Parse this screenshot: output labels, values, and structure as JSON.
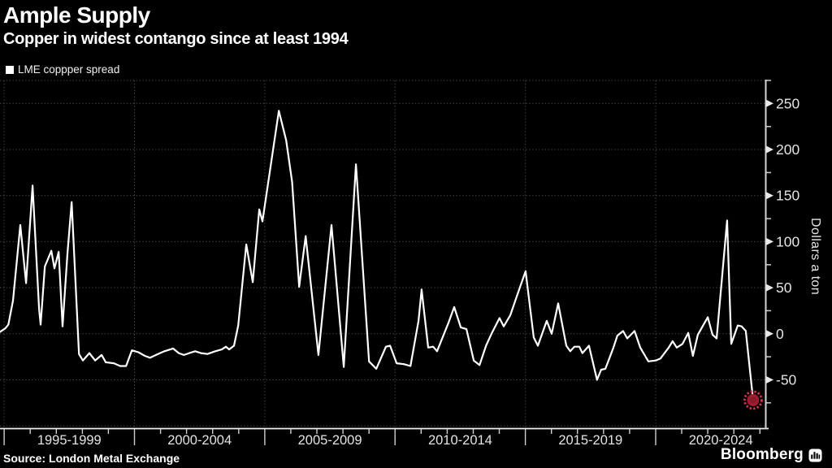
{
  "header": {
    "title": "Ample Supply",
    "subtitle": "Copper in widest contango since at least 1994"
  },
  "legend": {
    "label": "LME coppper spread",
    "swatch_color": "#ffffff"
  },
  "footer": {
    "source": "Source: London Metal Exchange",
    "brand": "Bloomberg"
  },
  "chart_data": {
    "type": "line",
    "title": "Ample Supply",
    "subtitle": "Copper in widest contango since at least 1994",
    "xlabel": "",
    "ylabel": "Dollars a ton",
    "background_color": "#000000",
    "line_color": "#ffffff",
    "grid_color": "#4d4d4d",
    "axis_color": "#d6d6d6",
    "tick_label_color": "#e4e4e4",
    "grid_style": "dotted",
    "legend_position": "top-left",
    "x_categories": [
      "1995-1999",
      "2000-2004",
      "2005-2009",
      "2010-2014",
      "2015-2019",
      "2020-2024"
    ],
    "x_boundaries": [
      1995,
      2000,
      2005,
      2010,
      2015,
      2020
    ],
    "x_minor_step": 1,
    "xlim": [
      1994.84,
      2024.21
    ],
    "ylim": [
      -102.5,
      275
    ],
    "y_major_ticks": [
      250,
      200,
      150,
      100,
      50,
      0,
      -50
    ],
    "y_minor_ticks": [
      275,
      225,
      175,
      125,
      75,
      25,
      -25,
      -75
    ],
    "y_gridlines": [
      275,
      250,
      200,
      150,
      100,
      50,
      0,
      -50,
      -100
    ],
    "endpoint_marker": {
      "year": 2023.74,
      "value": -72,
      "fill": "#9c1e31",
      "ring_color": "#d83450"
    },
    "series": [
      {
        "name": "LME coppper spread",
        "color": "#ffffff",
        "points": [
          [
            1994.84,
            2
          ],
          [
            1995.05,
            6
          ],
          [
            1995.16,
            10
          ],
          [
            1995.34,
            36
          ],
          [
            1995.62,
            118
          ],
          [
            1995.84,
            55
          ],
          [
            1996.09,
            161
          ],
          [
            1996.34,
            27
          ],
          [
            1996.4,
            10
          ],
          [
            1996.56,
            73
          ],
          [
            1996.81,
            90
          ],
          [
            1996.93,
            71
          ],
          [
            1997.09,
            89
          ],
          [
            1997.24,
            8
          ],
          [
            1997.43,
            88
          ],
          [
            1997.59,
            143
          ],
          [
            1997.87,
            -22
          ],
          [
            1998.02,
            -29
          ],
          [
            1998.27,
            -21
          ],
          [
            1998.49,
            -29
          ],
          [
            1998.74,
            -23
          ],
          [
            1998.9,
            -31
          ],
          [
            1999.21,
            -32
          ],
          [
            1999.45,
            -35
          ],
          [
            1999.68,
            -35
          ],
          [
            1999.9,
            -18
          ],
          [
            2000.15,
            -20
          ],
          [
            2000.4,
            -24
          ],
          [
            2000.6,
            -26
          ],
          [
            2000.9,
            -22
          ],
          [
            2001.15,
            -19
          ],
          [
            2001.48,
            -16
          ],
          [
            2001.7,
            -21
          ],
          [
            2001.9,
            -23
          ],
          [
            2002.1,
            -21
          ],
          [
            2002.33,
            -19
          ],
          [
            2002.55,
            -21
          ],
          [
            2002.8,
            -22
          ],
          [
            2003.1,
            -19
          ],
          [
            2003.35,
            -17
          ],
          [
            2003.51,
            -14
          ],
          [
            2003.63,
            -17
          ],
          [
            2003.82,
            -13
          ],
          [
            2003.98,
            9
          ],
          [
            2004.29,
            97
          ],
          [
            2004.54,
            56
          ],
          [
            2004.79,
            135
          ],
          [
            2004.91,
            122
          ],
          [
            2005.54,
            242
          ],
          [
            2005.82,
            210
          ],
          [
            2006.05,
            165
          ],
          [
            2006.32,
            51
          ],
          [
            2006.57,
            106
          ],
          [
            2007.06,
            -23
          ],
          [
            2007.56,
            118
          ],
          [
            2008.03,
            -36
          ],
          [
            2008.5,
            184
          ],
          [
            2009.0,
            -30
          ],
          [
            2009.28,
            -38
          ],
          [
            2009.65,
            -14
          ],
          [
            2009.81,
            -13
          ],
          [
            2010.06,
            -32
          ],
          [
            2010.34,
            -33
          ],
          [
            2010.59,
            -35
          ],
          [
            2010.9,
            14
          ],
          [
            2011.02,
            48
          ],
          [
            2011.27,
            -15
          ],
          [
            2011.46,
            -14
          ],
          [
            2011.61,
            -19
          ],
          [
            2012.05,
            12
          ],
          [
            2012.27,
            29
          ],
          [
            2012.52,
            7
          ],
          [
            2012.74,
            5
          ],
          [
            2013.02,
            -29
          ],
          [
            2013.24,
            -34
          ],
          [
            2013.49,
            -13
          ],
          [
            2013.7,
            0
          ],
          [
            2014.01,
            17
          ],
          [
            2014.17,
            8
          ],
          [
            2014.42,
            20
          ],
          [
            2014.7,
            43
          ],
          [
            2015.01,
            68
          ],
          [
            2015.32,
            -4
          ],
          [
            2015.48,
            -13
          ],
          [
            2015.82,
            14
          ],
          [
            2016.01,
            0
          ],
          [
            2016.26,
            33
          ],
          [
            2016.57,
            -13
          ],
          [
            2016.72,
            -19
          ],
          [
            2016.88,
            -14
          ],
          [
            2017.07,
            -14
          ],
          [
            2017.19,
            -21
          ],
          [
            2017.44,
            -13
          ],
          [
            2017.75,
            -50
          ],
          [
            2017.91,
            -39
          ],
          [
            2018.07,
            -38
          ],
          [
            2018.38,
            -15
          ],
          [
            2018.53,
            -2
          ],
          [
            2018.75,
            3
          ],
          [
            2018.91,
            -5
          ],
          [
            2019.19,
            3
          ],
          [
            2019.41,
            -15
          ],
          [
            2019.72,
            -30
          ],
          [
            2020.0,
            -29
          ],
          [
            2020.18,
            -27
          ],
          [
            2020.5,
            -15
          ],
          [
            2020.65,
            -8
          ],
          [
            2020.81,
            -15
          ],
          [
            2021.03,
            -11
          ],
          [
            2021.25,
            1
          ],
          [
            2021.43,
            -24
          ],
          [
            2021.62,
            -1
          ],
          [
            2022.0,
            18
          ],
          [
            2022.18,
            -1
          ],
          [
            2022.34,
            -5
          ],
          [
            2022.74,
            123
          ],
          [
            2022.9,
            -11
          ],
          [
            2023.15,
            9
          ],
          [
            2023.3,
            8
          ],
          [
            2023.46,
            3
          ],
          [
            2023.74,
            -72
          ]
        ]
      }
    ]
  }
}
